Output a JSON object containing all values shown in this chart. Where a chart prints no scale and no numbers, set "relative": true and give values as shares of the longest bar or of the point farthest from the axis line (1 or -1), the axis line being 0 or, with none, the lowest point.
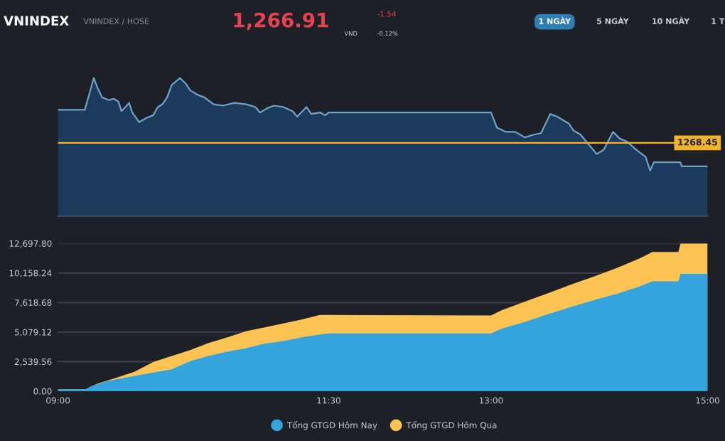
{
  "chart_data": [
    {
      "type": "other",
      "title": "VNINDEX",
      "subtitle": "VNINDEX / HOSE",
      "annotations": [
        "1,266.91",
        "VND",
        "-1.54",
        "-0.12%",
        "1 NGÀY",
        "5 NGÀY",
        "10 NGÀY",
        "1 T"
      ]
    },
    {
      "type": "area",
      "relative": true,
      "xlim": [
        9,
        15
      ],
      "grid": false,
      "annotations": [
        "1268.45"
      ],
      "series": [
        {
          "color": "#6fa3c8",
          "x": [
            9.0,
            9.248,
            9.291,
            9.33,
            9.364,
            9.407,
            9.471,
            9.514,
            9.557,
            9.587,
            9.622,
            9.656,
            9.686,
            9.75,
            9.815,
            9.879,
            9.922,
            9.965,
            10.008,
            10.051,
            10.128,
            10.179,
            10.222,
            10.287,
            10.351,
            10.437,
            10.522,
            10.63,
            10.737,
            10.823,
            10.866,
            10.93,
            10.994,
            11.08,
            11.166,
            11.209,
            11.295,
            11.338,
            11.424,
            11.467,
            11.5,
            13.0,
            13.054,
            13.139,
            13.225,
            13.311,
            13.397,
            13.461,
            13.547,
            13.611,
            13.719,
            13.761,
            13.826,
            13.89,
            13.976,
            14.04,
            14.126,
            14.191,
            14.255,
            14.341,
            14.427,
            14.469,
            14.504,
            14.748,
            14.761,
            15.0
          ],
          "values": [
            0.77,
            0.77,
            0.89,
            1.0,
            0.93,
            0.86,
            0.84,
            0.85,
            0.83,
            0.76,
            0.79,
            0.82,
            0.75,
            0.68,
            0.71,
            0.73,
            0.79,
            0.81,
            0.86,
            0.95,
            1.0,
            0.96,
            0.91,
            0.88,
            0.86,
            0.81,
            0.8,
            0.82,
            0.81,
            0.79,
            0.75,
            0.78,
            0.8,
            0.79,
            0.76,
            0.72,
            0.79,
            0.74,
            0.75,
            0.73,
            0.75,
            0.75,
            0.64,
            0.61,
            0.61,
            0.57,
            0.59,
            0.6,
            0.74,
            0.72,
            0.67,
            0.62,
            0.59,
            0.53,
            0.45,
            0.48,
            0.61,
            0.56,
            0.54,
            0.48,
            0.43,
            0.33,
            0.39,
            0.39,
            0.36,
            0.36
          ]
        }
      ],
      "ref_lines": [
        {
          "axis": "y",
          "value": 0.53,
          "color": "#f0b429"
        }
      ]
    },
    {
      "type": "area",
      "xlim": [
        9,
        15
      ],
      "ylim": [
        0,
        12697.8
      ],
      "xticks": [
        {
          "value": 9,
          "label": "09:00"
        },
        {
          "value": 11.5,
          "label": "11:30"
        },
        {
          "value": 13,
          "label": "13:00"
        },
        {
          "value": 15,
          "label": "15:00"
        }
      ],
      "yticks": [
        {
          "value": 0,
          "label": "0.00"
        },
        {
          "value": 2539.56,
          "label": "2,539.56"
        },
        {
          "value": 5079.12,
          "label": "5,079.12"
        },
        {
          "value": 7618.68,
          "label": "7,618.68"
        },
        {
          "value": 10158.24,
          "label": "10,158.24"
        },
        {
          "value": 12697.8,
          "label": "12,697.80"
        }
      ],
      "grid": "y",
      "legend": "bottom",
      "series": [
        {
          "name": "Tổng GTGD Hôm Nay",
          "color": "#35a3dc",
          "x": [
            9.0,
            9.257,
            9.3,
            9.45,
            9.664,
            9.879,
            10.05,
            10.22,
            10.39,
            10.565,
            10.74,
            10.91,
            11.08,
            11.25,
            11.42,
            11.5,
            13.0,
            13.1,
            13.31,
            13.53,
            13.74,
            13.96,
            14.17,
            14.38,
            14.49,
            14.73,
            14.75,
            15.0
          ],
          "values": [
            160,
            160,
            410,
            860,
            1230,
            1600,
            1880,
            2580,
            3030,
            3400,
            3690,
            4100,
            4300,
            4630,
            4870,
            4960,
            4960,
            5370,
            5940,
            6630,
            7240,
            7850,
            8380,
            9030,
            9440,
            9440,
            10090,
            10090
          ]
        },
        {
          "name": "Tổng GTGD Hôm Qua",
          "color": "#fdc453",
          "x": [
            9.0,
            9.257,
            9.364,
            9.535,
            9.708,
            9.879,
            10.05,
            10.22,
            10.39,
            10.565,
            10.74,
            10.91,
            11.08,
            11.25,
            11.42,
            11.5,
            13.0,
            13.1,
            13.31,
            13.53,
            13.74,
            13.96,
            14.17,
            14.38,
            14.49,
            14.73,
            14.75,
            15.0
          ],
          "values": [
            160,
            160,
            650,
            1150,
            1680,
            2500,
            3030,
            3520,
            4140,
            4630,
            5160,
            5490,
            5820,
            6150,
            6550,
            6550,
            6510,
            6960,
            7690,
            8430,
            9160,
            9890,
            10620,
            11440,
            11970,
            11970,
            12697.8,
            12697.8
          ]
        }
      ]
    }
  ]
}
